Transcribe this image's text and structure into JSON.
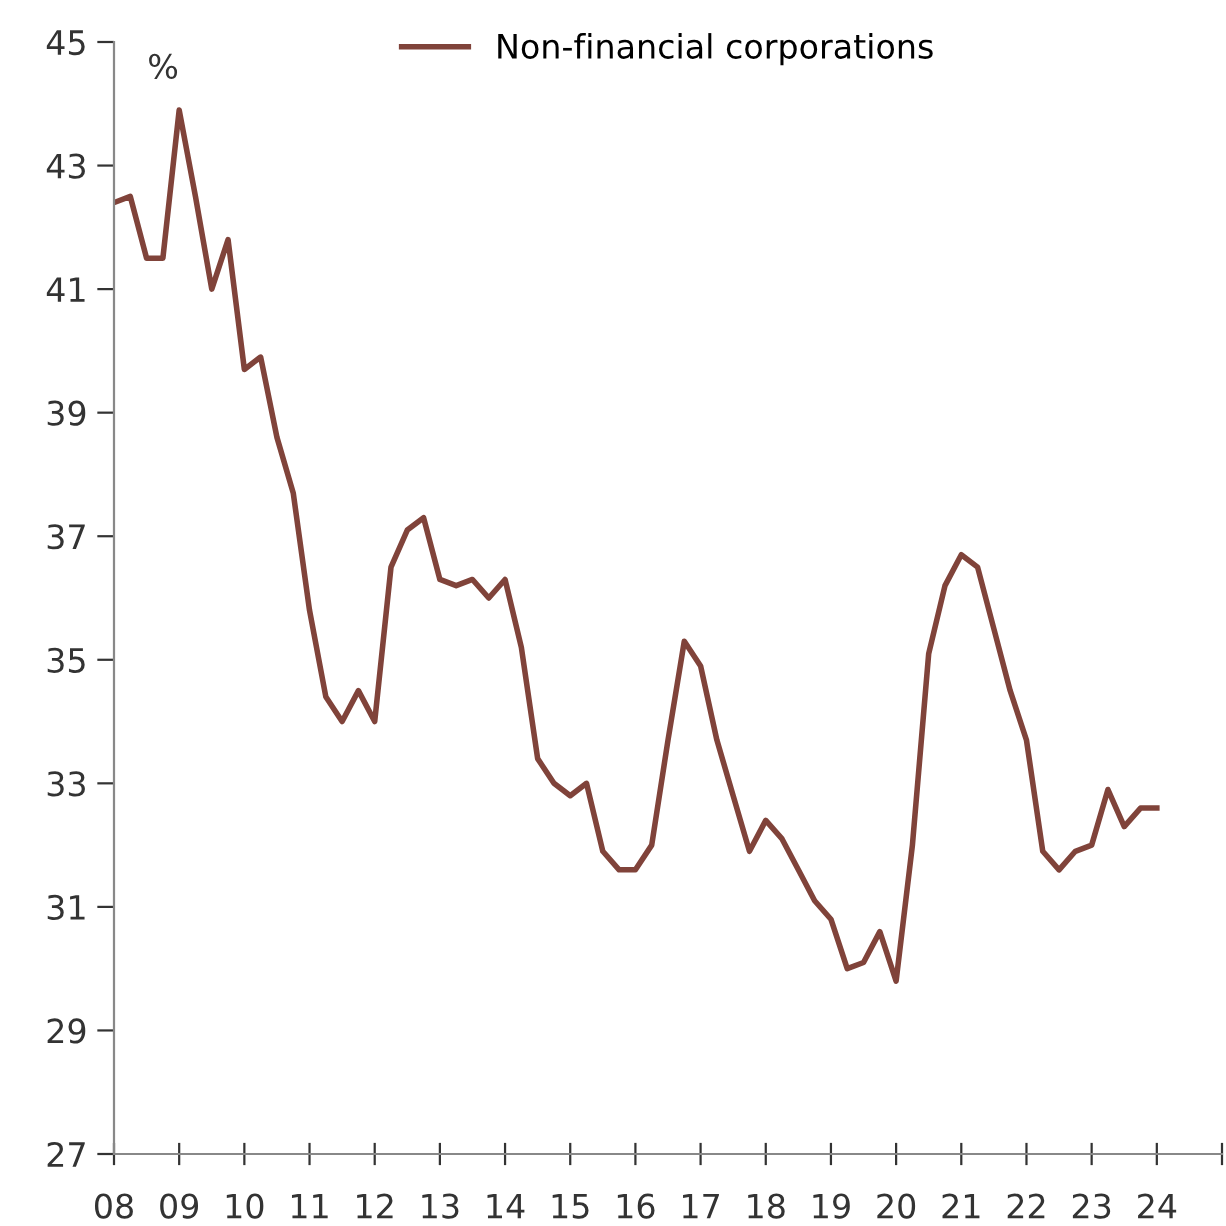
{
  "chart_data": {
    "type": "line",
    "ylabel": "%",
    "x": [
      2008,
      2008.25,
      2008.5,
      2008.75,
      2009,
      2009.25,
      2009.5,
      2009.75,
      2010,
      2010.25,
      2010.5,
      2010.75,
      2011,
      2011.25,
      2011.5,
      2011.75,
      2012,
      2012.25,
      2012.5,
      2012.75,
      2013,
      2013.25,
      2013.5,
      2013.75,
      2014,
      2014.25,
      2014.5,
      2014.75,
      2015,
      2015.25,
      2015.5,
      2015.75,
      2016,
      2016.25,
      2016.5,
      2016.75,
      2017,
      2017.25,
      2017.5,
      2017.75,
      2018,
      2018.25,
      2018.5,
      2018.75,
      2019,
      2019.25,
      2019.5,
      2019.75,
      2020,
      2020.25,
      2020.5,
      2020.75,
      2021,
      2021.25,
      2021.5,
      2021.75,
      2022,
      2022.25,
      2022.5,
      2022.75,
      2023,
      2023.25,
      2023.5,
      2023.75,
      2024
    ],
    "series": [
      {
        "name": "Non-financial corporations",
        "color": "#80433a",
        "values": [
          42.4,
          42.5,
          41.5,
          41.5,
          43.9,
          42.5,
          41.0,
          41.8,
          39.7,
          39.9,
          38.6,
          37.7,
          35.8,
          34.4,
          34.0,
          34.5,
          34.0,
          36.5,
          37.1,
          37.3,
          36.3,
          36.2,
          36.3,
          36.0,
          36.3,
          35.2,
          33.4,
          33.0,
          32.8,
          33.0,
          31.9,
          31.6,
          31.6,
          32.0,
          33.7,
          35.3,
          34.9,
          33.7,
          32.8,
          31.9,
          32.4,
          32.1,
          31.6,
          31.1,
          30.8,
          30.0,
          30.1,
          30.6,
          29.8,
          32.0,
          35.1,
          36.2,
          36.7,
          36.5,
          35.5,
          34.5,
          33.7,
          31.9,
          31.6,
          31.9,
          32.0,
          32.9,
          32.3,
          32.6,
          32.6
        ]
      }
    ],
    "xlim": [
      2008,
      2025
    ],
    "xticks": [
      {
        "value": 2008,
        "label": "08"
      },
      {
        "value": 2009,
        "label": "09"
      },
      {
        "value": 2010,
        "label": "10"
      },
      {
        "value": 2011,
        "label": "11"
      },
      {
        "value": 2012,
        "label": "12"
      },
      {
        "value": 2013,
        "label": "13"
      },
      {
        "value": 2014,
        "label": "14"
      },
      {
        "value": 2015,
        "label": "15"
      },
      {
        "value": 2016,
        "label": "16"
      },
      {
        "value": 2017,
        "label": "17"
      },
      {
        "value": 2018,
        "label": "18"
      },
      {
        "value": 2019,
        "label": "19"
      },
      {
        "value": 2020,
        "label": "20"
      },
      {
        "value": 2021,
        "label": "21"
      },
      {
        "value": 2022,
        "label": "22"
      },
      {
        "value": 2023,
        "label": "23"
      },
      {
        "value": 2024,
        "label": "24"
      },
      {
        "value": 2025,
        "label": null
      }
    ],
    "ylim": [
      27,
      45
    ],
    "yticks": [
      27,
      29,
      31,
      33,
      35,
      37,
      39,
      41,
      43,
      45
    ],
    "grid": false,
    "legend": "top",
    "marker": "none",
    "line_style": "solid"
  }
}
